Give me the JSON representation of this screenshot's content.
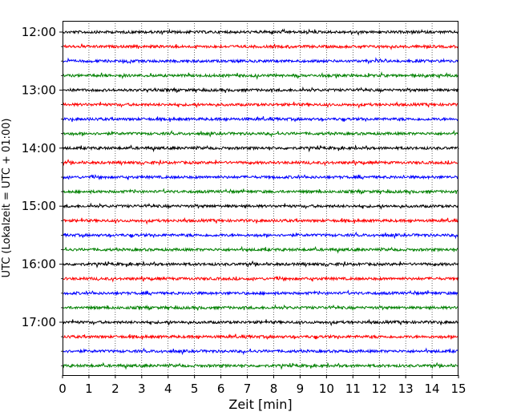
{
  "chart_data": {
    "type": "line",
    "title": "",
    "xlabel": "Zeit  [min]",
    "ylabel": "UTC (Lokalzeit = UTC + 01:00)",
    "xlim": [
      0,
      15
    ],
    "x_ticks": [
      "0",
      "1",
      "2",
      "3",
      "4",
      "5",
      "6",
      "7",
      "8",
      "9",
      "10",
      "11",
      "12",
      "13",
      "14",
      "15"
    ],
    "y_tick_labels": [
      "12:00",
      "13:00",
      "14:00",
      "15:00",
      "16:00",
      "17:00"
    ],
    "trace_interval_min": 15,
    "trace_start": "12:00",
    "trace_count": 24,
    "trace_colors": [
      "#000000",
      "#ff0000",
      "#0000ff",
      "#008000"
    ],
    "grid": "vertical dotted lines at each minute",
    "legend": "none"
  }
}
